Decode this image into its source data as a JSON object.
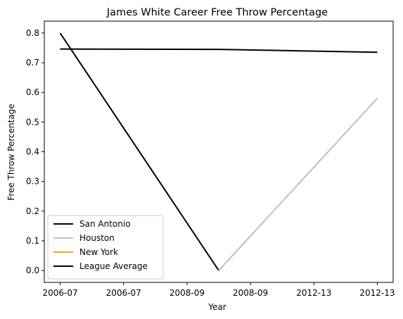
{
  "chart_data": {
    "type": "line",
    "title": "James White  Career Free Throw Percentage",
    "xlabel": "Year",
    "ylabel": "Free Throw Percentage",
    "x_tick_labels": [
      "2006-07",
      "2006-07",
      "2008-09",
      "2008-09",
      "2012-13",
      "2012-13"
    ],
    "x_range": [
      -0.1,
      2.1
    ],
    "ylim": [
      -0.04,
      0.84
    ],
    "y_ticks": [
      0.0,
      0.1,
      0.2,
      0.3,
      0.4,
      0.5,
      0.6,
      0.7,
      0.8
    ],
    "grid": false,
    "legend_position": "lower-left",
    "series": [
      {
        "name": "San Antonio",
        "color": "#000000",
        "x": [
          0,
          1
        ],
        "values": [
          0.8,
          0.0
        ]
      },
      {
        "name": "Houston",
        "color": "#bfbfbf",
        "x": [
          1,
          2
        ],
        "values": [
          0.0,
          0.58
        ]
      },
      {
        "name": "New York",
        "color": "#f5a623",
        "x": [],
        "values": []
      },
      {
        "name": "League Average",
        "color": "#000000",
        "x": [
          0,
          1,
          2
        ],
        "values": [
          0.746,
          0.745,
          0.735
        ]
      }
    ]
  }
}
